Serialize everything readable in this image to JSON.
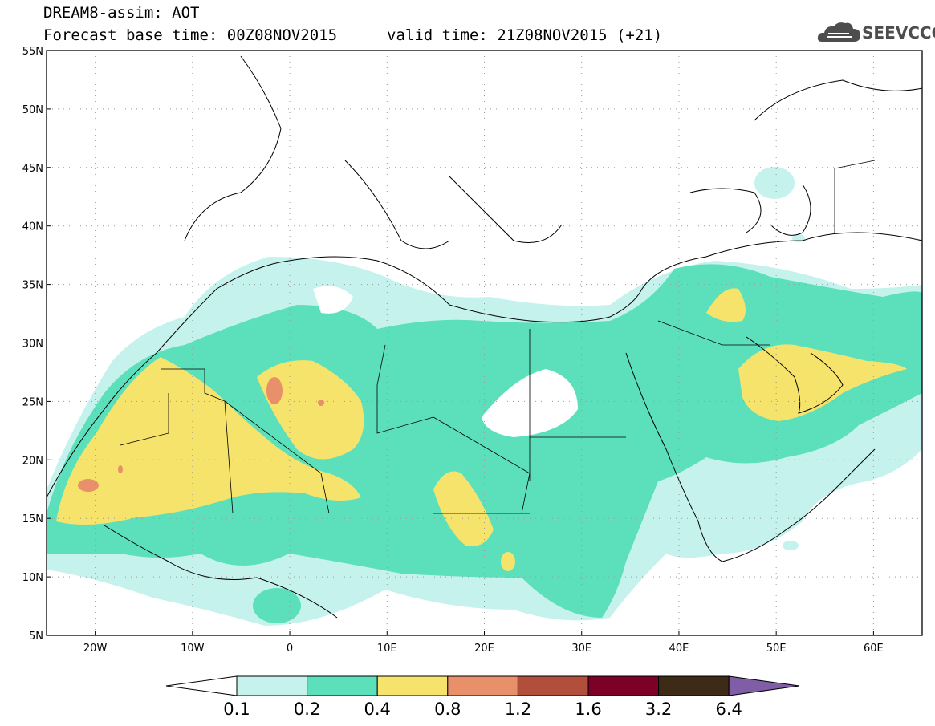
{
  "title": {
    "line1": "DREAM8-assim: AOT",
    "line2": "Forecast base time: 00Z08NOV2015",
    "line3": "valid time: 21Z08NOV2015 (+21)"
  },
  "logo": {
    "text": "SEEVCCC",
    "icon": "cloud-icon"
  },
  "map": {
    "lat_labels": [
      "55N",
      "50N",
      "45N",
      "40N",
      "35N",
      "30N",
      "25N",
      "20N",
      "15N",
      "10N",
      "5N"
    ],
    "lat_values": [
      55,
      50,
      45,
      40,
      35,
      30,
      25,
      20,
      15,
      10,
      5
    ],
    "lon_labels": [
      "20W",
      "10W",
      "0",
      "10E",
      "20E",
      "30E",
      "40E",
      "50E",
      "60E"
    ],
    "lon_values": [
      -20,
      -10,
      0,
      10,
      20,
      30,
      40,
      50,
      60
    ],
    "lon_range": [
      -25,
      65
    ],
    "lat_range": [
      5,
      55
    ],
    "grid": "dotted"
  },
  "colorbar": {
    "levels": [
      "0.1",
      "0.2",
      "0.4",
      "0.8",
      "1.2",
      "1.6",
      "3.2",
      "6.4"
    ],
    "colors": [
      "#ffffff",
      "#c5f2ec",
      "#5ce0bc",
      "#f5e36c",
      "#e8906a",
      "#b14e3c",
      "#7d0027",
      "#3d2a17",
      "#7f5ea7"
    ]
  }
}
